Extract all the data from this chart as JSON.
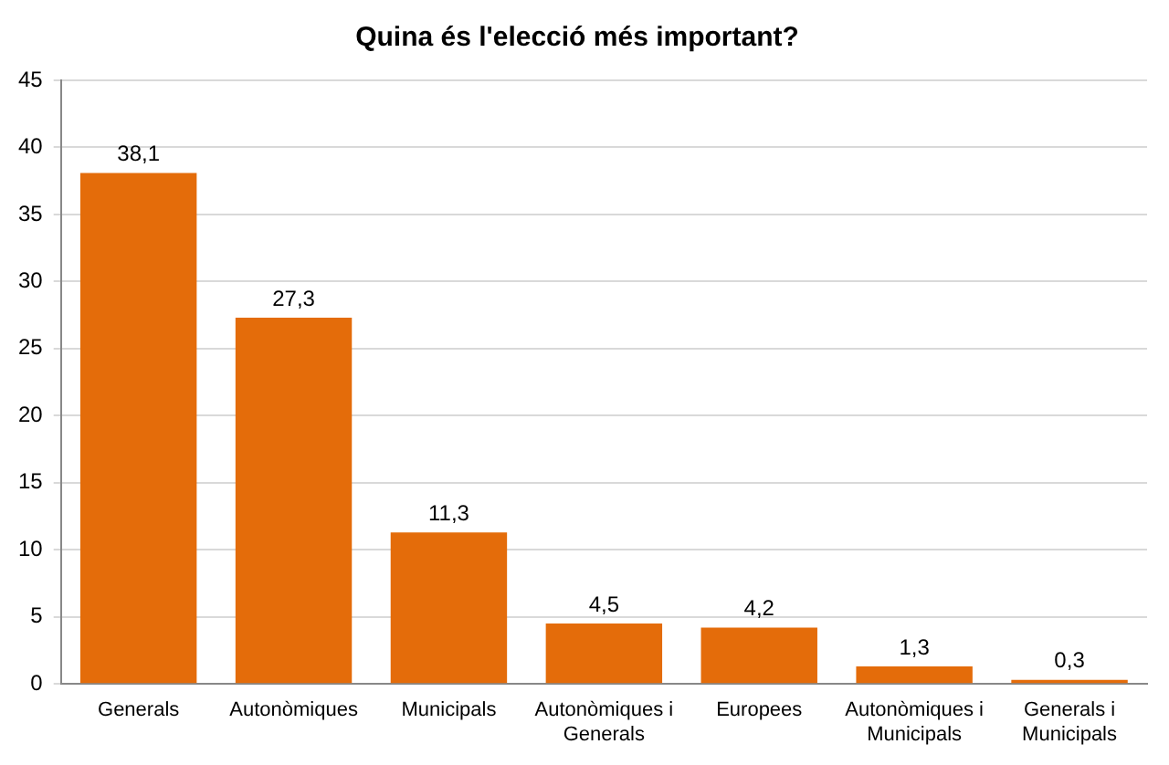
{
  "chart_data": {
    "type": "bar",
    "title": "Quina és l'elecció més important?",
    "categories": [
      "Generals",
      "Autonòmiques",
      "Municipals",
      "Autonòmiques i Generals",
      "Europees",
      "Autonòmiques i Municipals",
      "Generals i Municipals"
    ],
    "values": [
      38.1,
      27.3,
      11.3,
      4.5,
      4.2,
      1.3,
      0.3
    ],
    "value_labels": [
      "38,1",
      "27,3",
      "11,3",
      "4,5",
      "4,2",
      "1,3",
      "0,3"
    ],
    "color": "#e46c0a",
    "ylim": [
      0,
      45
    ],
    "yticks": [
      0,
      5,
      10,
      15,
      20,
      25,
      30,
      35,
      40,
      45
    ],
    "grid": "y",
    "legend": false
  }
}
